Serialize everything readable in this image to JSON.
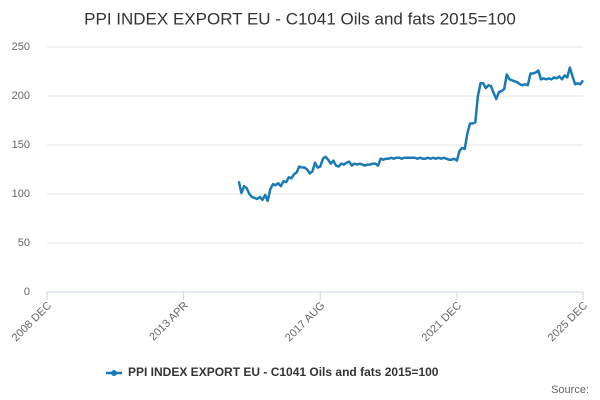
{
  "chart_data": {
    "type": "line",
    "title": "PPI INDEX EXPORT EU - C1041 Oils and fats 2015=100",
    "source": "Source:",
    "x": [
      "2015-01",
      "2015-02",
      "2015-03",
      "2015-04",
      "2015-05",
      "2015-06",
      "2015-07",
      "2015-08",
      "2015-09",
      "2015-10",
      "2015-11",
      "2015-12",
      "2016-01",
      "2016-02",
      "2016-03",
      "2016-04",
      "2016-05",
      "2016-06",
      "2016-07",
      "2016-08",
      "2016-09",
      "2016-10",
      "2016-11",
      "2016-12",
      "2017-01",
      "2017-02",
      "2017-03",
      "2017-04",
      "2017-05",
      "2017-06",
      "2017-07",
      "2017-08",
      "2017-09",
      "2017-10",
      "2017-11",
      "2017-12",
      "2018-01",
      "2018-02",
      "2018-03",
      "2018-04",
      "2018-05",
      "2018-06",
      "2018-07",
      "2018-08",
      "2018-09",
      "2018-10",
      "2018-11",
      "2018-12",
      "2019-01",
      "2019-02",
      "2019-03",
      "2019-04",
      "2019-05",
      "2019-06",
      "2019-07",
      "2019-08",
      "2019-09",
      "2019-10",
      "2019-11",
      "2019-12",
      "2020-01",
      "2020-02",
      "2020-03",
      "2020-04",
      "2020-05",
      "2020-06",
      "2020-07",
      "2020-08",
      "2020-09",
      "2020-10",
      "2020-11",
      "2020-12",
      "2021-01",
      "2021-02",
      "2021-03",
      "2021-04",
      "2021-05",
      "2021-06",
      "2021-07",
      "2021-08",
      "2021-09",
      "2021-10",
      "2021-11",
      "2021-12",
      "2022-01",
      "2022-02",
      "2022-03",
      "2022-04",
      "2022-05",
      "2022-06",
      "2022-07",
      "2022-08",
      "2022-09",
      "2022-10",
      "2022-11",
      "2022-12",
      "2023-01",
      "2023-02",
      "2023-03",
      "2023-04",
      "2023-05",
      "2023-06",
      "2023-07",
      "2023-08",
      "2023-09",
      "2023-10",
      "2023-11",
      "2023-12",
      "2024-01",
      "2024-02",
      "2024-03",
      "2024-04",
      "2024-05",
      "2024-06",
      "2024-07",
      "2024-08",
      "2024-09",
      "2024-10",
      "2024-11",
      "2024-12",
      "2025-01",
      "2025-02",
      "2025-03",
      "2025-04",
      "2025-05",
      "2025-06",
      "2025-07",
      "2025-08",
      "2025-09",
      "2025-10",
      "2025-11",
      "2025-12"
    ],
    "series": [
      {
        "name": "PPI INDEX EXPORT EU - C1041 Oils and fats 2015=100",
        "color": "#1a7ab5",
        "values": [
          113,
          101,
          108,
          106,
          100,
          97,
          96,
          95,
          97,
          94,
          99,
          93,
          105,
          110,
          109,
          111,
          108,
          113,
          112,
          117,
          116,
          120,
          122,
          128,
          127,
          127,
          125,
          121,
          123,
          132,
          127,
          128,
          136,
          138,
          135,
          131,
          134,
          129,
          128,
          131,
          130,
          132,
          133,
          129,
          131,
          130,
          131,
          130,
          129,
          130,
          130,
          131,
          131,
          129,
          136,
          135,
          136,
          136,
          137,
          136,
          137,
          137,
          136,
          137,
          137,
          137,
          137,
          137,
          136,
          137,
          136,
          136,
          137,
          136,
          137,
          136,
          137,
          136,
          137,
          136,
          135,
          135,
          136,
          134,
          144,
          147,
          146,
          162,
          172,
          172,
          173,
          200,
          213,
          213,
          208,
          211,
          210,
          203,
          197,
          204,
          205,
          207,
          222,
          217,
          216,
          215,
          214,
          212,
          211,
          212,
          211,
          223,
          223,
          224,
          226,
          217,
          218,
          217,
          218,
          217,
          219,
          218,
          220,
          217,
          221,
          219,
          229,
          220,
          212,
          213,
          212,
          216
        ]
      }
    ],
    "xlim": [
      "2008-12",
      "2025-12"
    ],
    "xticks": [
      {
        "value": "2008-12",
        "label": "2008 DEC"
      },
      {
        "value": "2013-04",
        "label": "2013 APR"
      },
      {
        "value": "2017-08",
        "label": "2017 AUG"
      },
      {
        "value": "2021-12",
        "label": "2021 DEC"
      },
      {
        "value": "2025-12",
        "label": "2025 DEC"
      }
    ],
    "ylim": [
      0,
      250
    ],
    "yticks": [
      0,
      50,
      100,
      150,
      200,
      250
    ],
    "grid": true
  }
}
